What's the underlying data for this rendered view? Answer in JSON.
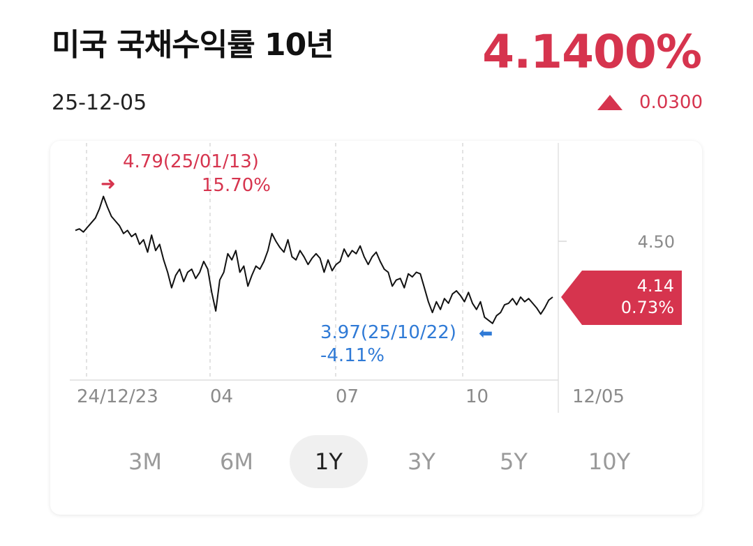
{
  "header": {
    "title": "미국 국채수익률 10년",
    "date": "25-12-05",
    "price": "4.1400%",
    "change": "0.0300"
  },
  "colors": {
    "up": "#d6344e",
    "low": "#2f7ad6",
    "line": "#111111"
  },
  "chart_data": {
    "type": "line",
    "xlabel": "",
    "ylabel": "",
    "x_tick_labels": [
      "24/12/23",
      "04",
      "07",
      "10",
      "12/05"
    ],
    "y_tick_labels": [
      "4.50"
    ],
    "ylim": [
      3.7,
      4.95
    ],
    "series": [
      {
        "values": [
          4.57,
          4.58,
          4.56,
          4.59,
          4.62,
          4.65,
          4.71,
          4.79,
          4.72,
          4.66,
          4.63,
          4.6,
          4.55,
          4.57,
          4.53,
          4.55,
          4.48,
          4.51,
          4.43,
          4.54,
          4.44,
          4.48,
          4.38,
          4.3,
          4.2,
          4.28,
          4.32,
          4.24,
          4.3,
          4.32,
          4.26,
          4.3,
          4.37,
          4.32,
          4.17,
          4.05,
          4.25,
          4.3,
          4.42,
          4.38,
          4.44,
          4.3,
          4.34,
          4.21,
          4.28,
          4.34,
          4.32,
          4.37,
          4.44,
          4.55,
          4.5,
          4.46,
          4.43,
          4.51,
          4.4,
          4.38,
          4.44,
          4.4,
          4.35,
          4.39,
          4.42,
          4.39,
          4.3,
          4.38,
          4.31,
          4.35,
          4.37,
          4.45,
          4.4,
          4.44,
          4.42,
          4.47,
          4.4,
          4.35,
          4.4,
          4.43,
          4.37,
          4.32,
          4.3,
          4.21,
          4.25,
          4.26,
          4.2,
          4.29,
          4.27,
          4.3,
          4.29,
          4.2,
          4.11,
          4.04,
          4.11,
          4.06,
          4.13,
          4.1,
          4.16,
          4.18,
          4.15,
          4.11,
          4.17,
          4.1,
          4.06,
          4.11,
          4.01,
          3.99,
          3.97,
          4.02,
          4.04,
          4.09,
          4.1,
          4.13,
          4.09,
          4.14,
          4.11,
          4.13,
          4.1,
          4.07,
          4.03,
          4.07,
          4.12,
          4.14
        ]
      }
    ],
    "annotations": {
      "high": {
        "value": "4.79",
        "date": "(25/01/13)",
        "pct": "15.70%"
      },
      "low": {
        "value": "3.97",
        "date": "(25/10/22)",
        "pct": "-4.11%"
      },
      "current": {
        "value": "4.14",
        "pct": "0.73%"
      }
    },
    "grid": true
  },
  "periods": [
    {
      "label": "3M",
      "active": false
    },
    {
      "label": "6M",
      "active": false
    },
    {
      "label": "1Y",
      "active": true
    },
    {
      "label": "3Y",
      "active": false
    },
    {
      "label": "5Y",
      "active": false
    },
    {
      "label": "10Y",
      "active": false
    }
  ]
}
